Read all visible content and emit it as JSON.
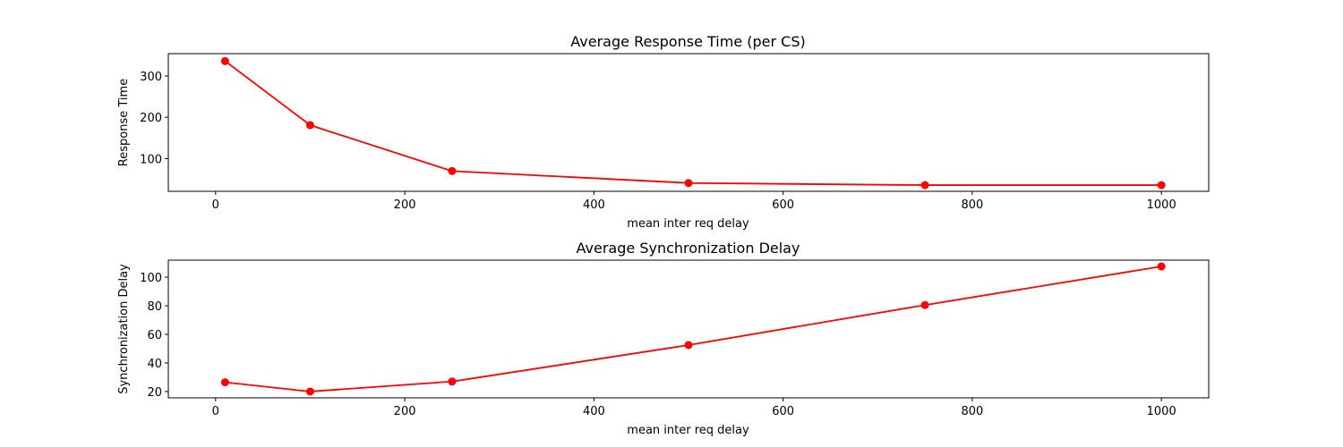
{
  "chart_data": [
    {
      "type": "line",
      "title": "Average Response Time (per CS)",
      "xlabel": "mean inter req delay",
      "ylabel": "Response Time",
      "x": [
        10,
        100,
        250,
        500,
        750,
        1000
      ],
      "series": [
        {
          "color": "#ff0000",
          "marker": "circle",
          "values": [
            336,
            181,
            70,
            41,
            36,
            36
          ]
        }
      ],
      "xlim": [
        -50,
        1050
      ],
      "ylim": [
        21,
        354
      ],
      "xticks": [
        0,
        200,
        400,
        600,
        800,
        1000
      ],
      "yticks": [
        100,
        200,
        300
      ],
      "grid": false
    },
    {
      "type": "line",
      "title": "Average Synchronization Delay",
      "xlabel": "mean inter req delay",
      "ylabel": "Synchronization Delay",
      "x": [
        10,
        100,
        250,
        500,
        750,
        1000
      ],
      "series": [
        {
          "color": "#ff0000",
          "marker": "circle",
          "values": [
            26.5,
            20,
            27,
            52.5,
            80.5,
            107.5
          ]
        }
      ],
      "xlim": [
        -50,
        1050
      ],
      "ylim": [
        15.6,
        111.9
      ],
      "xticks": [
        0,
        200,
        400,
        600,
        800,
        1000
      ],
      "yticks": [
        20,
        40,
        60,
        80,
        100
      ],
      "grid": false
    }
  ]
}
